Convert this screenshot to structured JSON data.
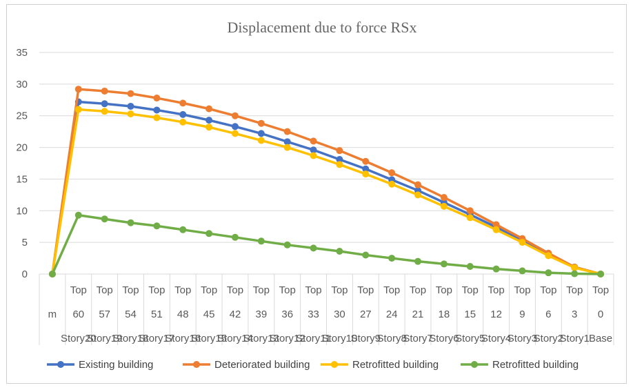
{
  "chart_data": {
    "type": "line",
    "title": "Displacement due to force RSx",
    "xlabel": "",
    "ylabel": "",
    "ylim": [
      0,
      35
    ],
    "yticks": [
      0,
      5,
      10,
      15,
      20,
      25,
      30,
      35
    ],
    "grid": true,
    "legend_position": "bottom",
    "categories": [
      {
        "row1": "",
        "row2": "m",
        "row3": ""
      },
      {
        "row1": "Top",
        "row2": "60",
        "row3": "Story20"
      },
      {
        "row1": "Top",
        "row2": "57",
        "row3": "Story19"
      },
      {
        "row1": "Top",
        "row2": "54",
        "row3": "Story18"
      },
      {
        "row1": "Top",
        "row2": "51",
        "row3": "Story17"
      },
      {
        "row1": "Top",
        "row2": "48",
        "row3": "Story16"
      },
      {
        "row1": "Top",
        "row2": "45",
        "row3": "Story15"
      },
      {
        "row1": "Top",
        "row2": "42",
        "row3": "Story14"
      },
      {
        "row1": "Top",
        "row2": "39",
        "row3": "Story13"
      },
      {
        "row1": "Top",
        "row2": "36",
        "row3": "Story12"
      },
      {
        "row1": "Top",
        "row2": "33",
        "row3": "Story11"
      },
      {
        "row1": "Top",
        "row2": "30",
        "row3": "Story10"
      },
      {
        "row1": "Top",
        "row2": "27",
        "row3": "Story9"
      },
      {
        "row1": "Top",
        "row2": "24",
        "row3": "Story8"
      },
      {
        "row1": "Top",
        "row2": "21",
        "row3": "Story7"
      },
      {
        "row1": "Top",
        "row2": "18",
        "row3": "Story6"
      },
      {
        "row1": "Top",
        "row2": "15",
        "row3": "Story5"
      },
      {
        "row1": "Top",
        "row2": "12",
        "row3": "Story4"
      },
      {
        "row1": "Top",
        "row2": "9",
        "row3": "Story3"
      },
      {
        "row1": "Top",
        "row2": "6",
        "row3": "Story2"
      },
      {
        "row1": "Top",
        "row2": "3",
        "row3": "Story1"
      },
      {
        "row1": "Top",
        "row2": "0",
        "row3": "Base"
      }
    ],
    "series": [
      {
        "name": "Existing building",
        "color": "#4472C4",
        "values": [
          0,
          27.2,
          26.9,
          26.5,
          25.9,
          25.2,
          24.3,
          23.3,
          22.2,
          20.9,
          19.6,
          18.1,
          16.6,
          14.9,
          13.2,
          11.3,
          9.4,
          7.4,
          5.4,
          3.2,
          1.1,
          0
        ]
      },
      {
        "name": "Deteriorated building",
        "color": "#ED7D31",
        "values": [
          0,
          29.2,
          28.9,
          28.5,
          27.8,
          27.0,
          26.1,
          25.0,
          23.8,
          22.5,
          21.0,
          19.5,
          17.8,
          16.0,
          14.1,
          12.1,
          10.0,
          7.8,
          5.6,
          3.3,
          1.1,
          0
        ]
      },
      {
        "name": "Retrofitted building",
        "color": "#FFC000",
        "values": [
          0,
          26.0,
          25.7,
          25.3,
          24.7,
          24.0,
          23.2,
          22.2,
          21.1,
          20.0,
          18.7,
          17.3,
          15.8,
          14.2,
          12.5,
          10.7,
          8.9,
          7.0,
          5.0,
          2.9,
          1.0,
          0
        ]
      },
      {
        "name": "Retrofitted building",
        "color": "#70AD47",
        "values": [
          0,
          9.3,
          8.7,
          8.1,
          7.6,
          7.0,
          6.4,
          5.8,
          5.2,
          4.6,
          4.1,
          3.6,
          3.0,
          2.5,
          2.0,
          1.6,
          1.2,
          0.8,
          0.5,
          0.2,
          0.05,
          0
        ]
      }
    ]
  }
}
